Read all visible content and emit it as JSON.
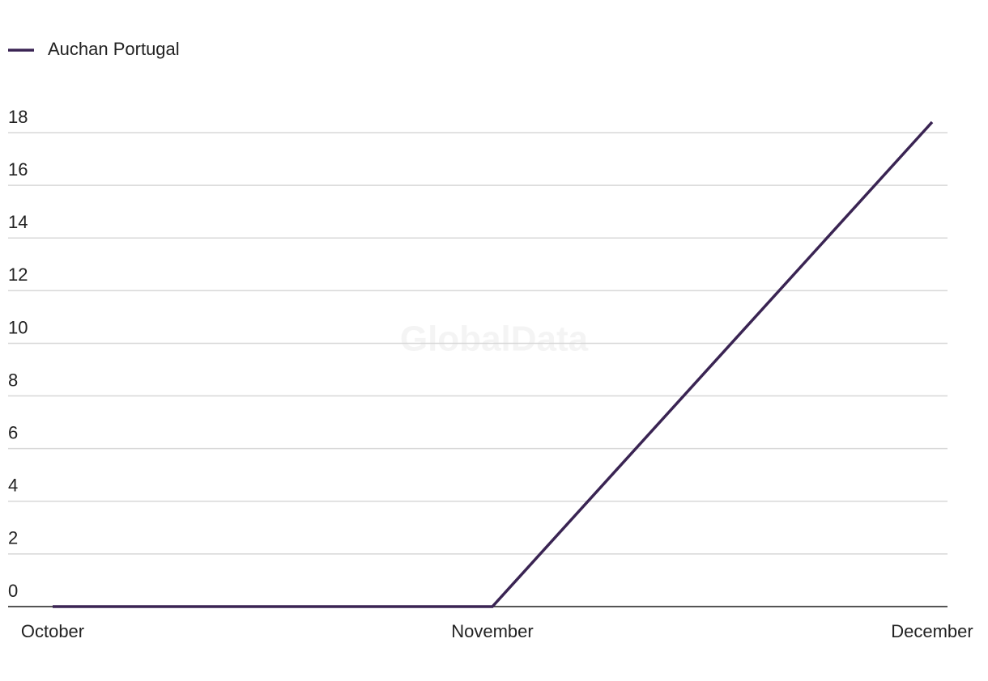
{
  "chart_data": {
    "type": "line",
    "watermark": "GlobalData",
    "categories": [
      "October",
      "November",
      "December"
    ],
    "series": [
      {
        "name": "Auchan Portugal",
        "color": "#3a2453",
        "values": [
          0,
          0,
          18.4
        ]
      }
    ],
    "ylim": [
      0,
      18
    ],
    "yticks": [
      0,
      2,
      4,
      6,
      8,
      10,
      12,
      14,
      16,
      18
    ],
    "grid": true,
    "legend": "top-left"
  }
}
